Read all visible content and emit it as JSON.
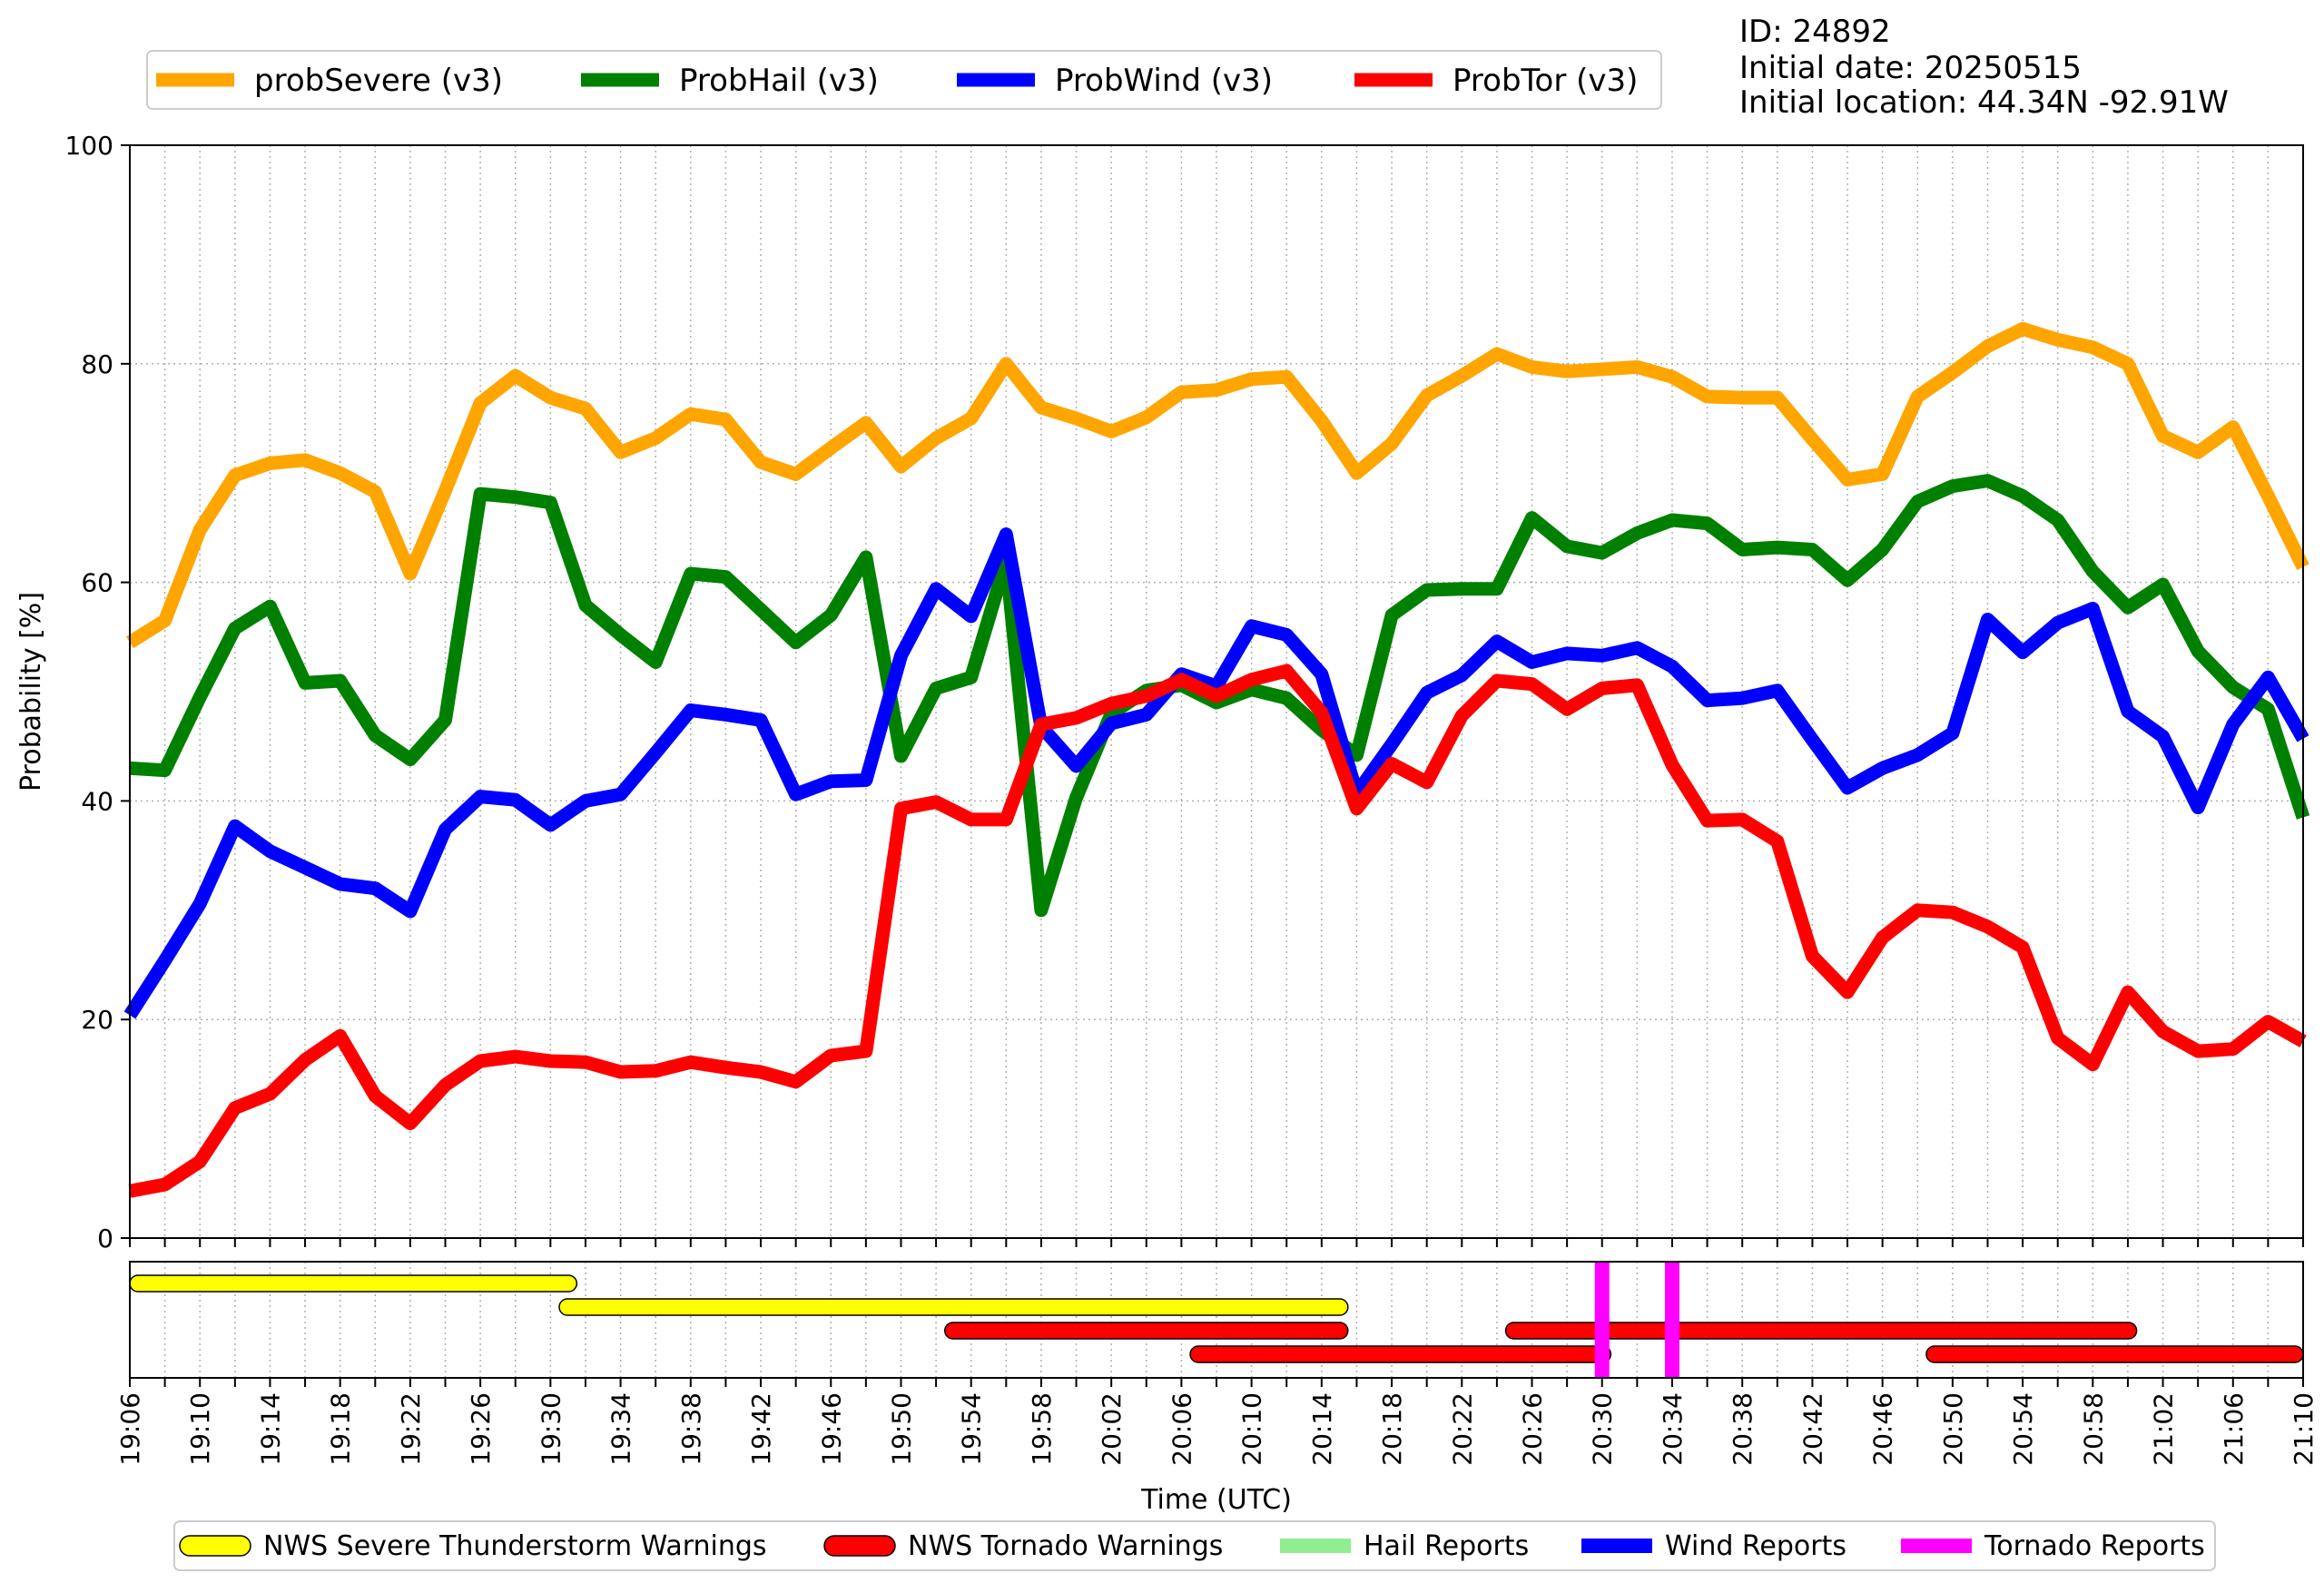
{
  "info": {
    "id_line": "ID: 24892",
    "date_line": "Initial date: 20250515",
    "location_line": "Initial location: 44.34N -92.91W"
  },
  "chart_data": [
    {
      "type": "line",
      "ylabel": "Probability [%]",
      "ylim": [
        0,
        100
      ],
      "yticks": [
        0,
        20,
        40,
        60,
        80,
        100
      ],
      "grid": true,
      "legend_position": "top",
      "x": [
        "19:06",
        "19:08",
        "19:10",
        "19:12",
        "19:14",
        "19:16",
        "19:18",
        "19:20",
        "19:22",
        "19:24",
        "19:26",
        "19:28",
        "19:30",
        "19:32",
        "19:34",
        "19:36",
        "19:38",
        "19:40",
        "19:42",
        "19:44",
        "19:46",
        "19:48",
        "19:50",
        "19:52",
        "19:54",
        "19:56",
        "19:58",
        "20:00",
        "20:02",
        "20:04",
        "20:06",
        "20:08",
        "20:10",
        "20:12",
        "20:14",
        "20:16",
        "20:18",
        "20:20",
        "20:22",
        "20:24",
        "20:26",
        "20:28",
        "20:30",
        "20:32",
        "20:34",
        "20:36",
        "20:38",
        "20:40",
        "20:42",
        "20:44",
        "20:46",
        "20:48",
        "20:50",
        "20:52",
        "20:54",
        "20:56",
        "20:58",
        "21:00",
        "21:02",
        "21:04",
        "21:06",
        "21:08",
        "21:10"
      ],
      "series": [
        {
          "name": "probSevere (v3)",
          "color": "#FFA500",
          "values": [
            54.5,
            56.5,
            64.8,
            69.8,
            70.9,
            71.2,
            70,
            68.3,
            60.8,
            68.4,
            76.4,
            78.9,
            76.9,
            75.9,
            71.9,
            73.2,
            75.4,
            74.9,
            71,
            69.9,
            72.3,
            74.6,
            70.6,
            73.2,
            75,
            80,
            76,
            75,
            73.8,
            75.1,
            77.4,
            77.6,
            78.6,
            78.8,
            74.8,
            70,
            72.7,
            77.1,
            78.9,
            80.9,
            79.7,
            79.3,
            79.5,
            79.7,
            78.8,
            77,
            76.9,
            76.9,
            73.1,
            69.4,
            69.9,
            77,
            79.2,
            81.6,
            83.2,
            82.2,
            81.5,
            80,
            73.4,
            71.9,
            74.2,
            67.9,
            61.4
          ]
        },
        {
          "name": "ProbHail (v3)",
          "color": "#008000",
          "values": [
            43,
            42.8,
            49.5,
            55.8,
            57.8,
            50.8,
            51,
            46,
            43.8,
            47.4,
            68.1,
            67.8,
            67.3,
            57.9,
            55.2,
            52.7,
            60.8,
            60.5,
            57.5,
            54.5,
            57,
            62.3,
            44.1,
            50.3,
            51.3,
            62,
            30,
            40.3,
            48,
            50.1,
            50.6,
            49,
            50.2,
            49.4,
            46.5,
            44.2,
            57,
            59.3,
            59.4,
            59.4,
            65.9,
            63.3,
            62.7,
            64.5,
            65.7,
            65.4,
            63,
            63.2,
            63,
            60.2,
            63,
            67.4,
            68.8,
            69.3,
            67.9,
            65.7,
            61,
            57.7,
            59.8,
            53.7,
            50.4,
            48.4,
            38.5
          ]
        },
        {
          "name": "ProbWind (v3)",
          "color": "#0000FF",
          "values": [
            20.4,
            25.4,
            30.6,
            37.7,
            35.4,
            33.9,
            32.4,
            32,
            29.9,
            37.4,
            40.4,
            40.1,
            37.8,
            40,
            40.6,
            44.4,
            48.3,
            47.9,
            47.4,
            40.6,
            41.8,
            41.9,
            53.3,
            59.4,
            56.9,
            64.4,
            46.8,
            43.2,
            47.1,
            47.9,
            51.6,
            50.5,
            56,
            55.2,
            51.6,
            40.7,
            45.2,
            49.9,
            51.5,
            54.6,
            52.7,
            53.5,
            53.3,
            54,
            52.3,
            49.2,
            49.4,
            50.1,
            45.6,
            41.2,
            43,
            44.2,
            46.2,
            56.6,
            53.6,
            56.3,
            57.6,
            48.2,
            45.9,
            39.4,
            47,
            51.3,
            45.7
          ]
        },
        {
          "name": "ProbTor (v3)",
          "color": "#FF0000",
          "values": [
            4.3,
            4.9,
            7,
            11.9,
            13.2,
            16.3,
            18.5,
            13,
            10.5,
            14,
            16.2,
            16.6,
            16.2,
            16.1,
            15.2,
            15.3,
            16.1,
            15.6,
            15.2,
            14.3,
            16.7,
            17.1,
            39.3,
            39.9,
            38.3,
            38.3,
            47,
            47.6,
            48.9,
            49.6,
            51.1,
            49.6,
            51.1,
            51.9,
            48.1,
            39.3,
            43.4,
            41.7,
            47.8,
            51,
            50.7,
            48.4,
            50.3,
            50.6,
            43.3,
            38.2,
            38.3,
            36.3,
            25.8,
            22.5,
            27.5,
            30,
            29.8,
            28.5,
            26.6,
            18.3,
            15.9,
            22.5,
            18.9,
            17.1,
            17.3,
            19.8,
            18
          ]
        }
      ]
    },
    {
      "type": "timeline",
      "xlabel": "Time (UTC)",
      "x_start": "19:06",
      "x_end": "21:10",
      "legend_position": "bottom",
      "legend": [
        {
          "label": "NWS Severe Thunderstorm Warnings",
          "color": "#FFFF00",
          "style": "rounded"
        },
        {
          "label": "NWS Tornado Warnings",
          "color": "#FF0000",
          "style": "rounded"
        },
        {
          "label": "Hail Reports",
          "color": "#90EE90",
          "style": "bar"
        },
        {
          "label": "Wind Reports",
          "color": "#0000FF",
          "style": "bar"
        },
        {
          "label": "Tornado Reports",
          "color": "#FF00FF",
          "style": "bar"
        }
      ],
      "warnings": [
        {
          "kind": "severe",
          "color": "#FFFF00",
          "row": 0,
          "start": "19:06",
          "end": "19:31.5"
        },
        {
          "kind": "severe",
          "color": "#FFFF00",
          "row": 1,
          "start": "19:30.5",
          "end": "20:15.5"
        },
        {
          "kind": "severe",
          "color": "#FFFF00",
          "row": 1,
          "start": "21:10",
          "end": "21:12"
        },
        {
          "kind": "tornado",
          "color": "#FF0000",
          "row": 2,
          "start": "19:52.5",
          "end": "20:15.5"
        },
        {
          "kind": "tornado",
          "color": "#FF0000",
          "row": 3,
          "start": "20:06.5",
          "end": "20:30.5"
        },
        {
          "kind": "tornado",
          "color": "#FF0000",
          "row": 2,
          "start": "20:24.5",
          "end": "21:00.5"
        },
        {
          "kind": "tornado",
          "color": "#FF0000",
          "row": 3,
          "start": "20:48.5",
          "end": "21:10"
        }
      ],
      "reports": [
        {
          "kind": "tornado",
          "color": "#FF00FF",
          "time": "20:30"
        },
        {
          "kind": "tornado",
          "color": "#FF00FF",
          "time": "20:34"
        }
      ]
    }
  ]
}
